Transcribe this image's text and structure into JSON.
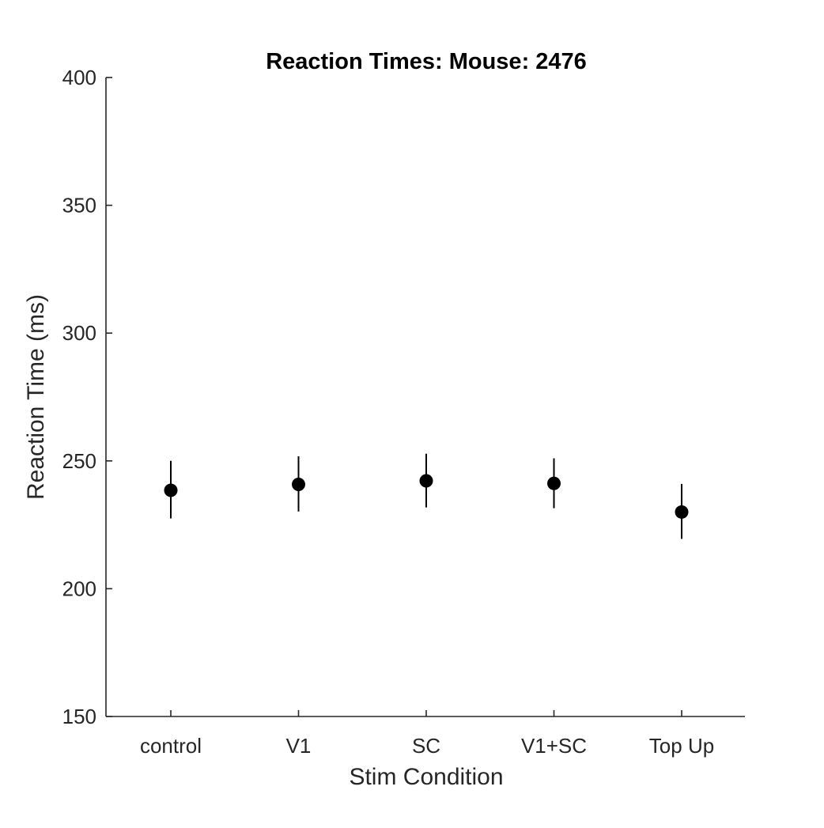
{
  "chart_data": {
    "type": "scatter",
    "title": "Reaction Times: Mouse: 2476",
    "xlabel": "Stim Condition",
    "ylabel": "Reaction Time (ms)",
    "categories": [
      "control",
      "V1",
      "SC",
      "V1+SC",
      "Top Up"
    ],
    "series": [
      {
        "values": [
          238.5,
          240.8,
          242.2,
          241.2,
          230.0
        ],
        "error_low": [
          227.5,
          230.2,
          231.8,
          231.5,
          219.5
        ],
        "error_high": [
          250.0,
          251.8,
          252.8,
          251.0,
          241.0
        ]
      }
    ],
    "ylim": [
      150,
      400
    ],
    "yticks": [
      150,
      200,
      250,
      300,
      350,
      400
    ],
    "grid": false,
    "legend": "none",
    "colors": {
      "marker": "#000000",
      "axis": "#262626",
      "background": "#ffffff"
    }
  }
}
